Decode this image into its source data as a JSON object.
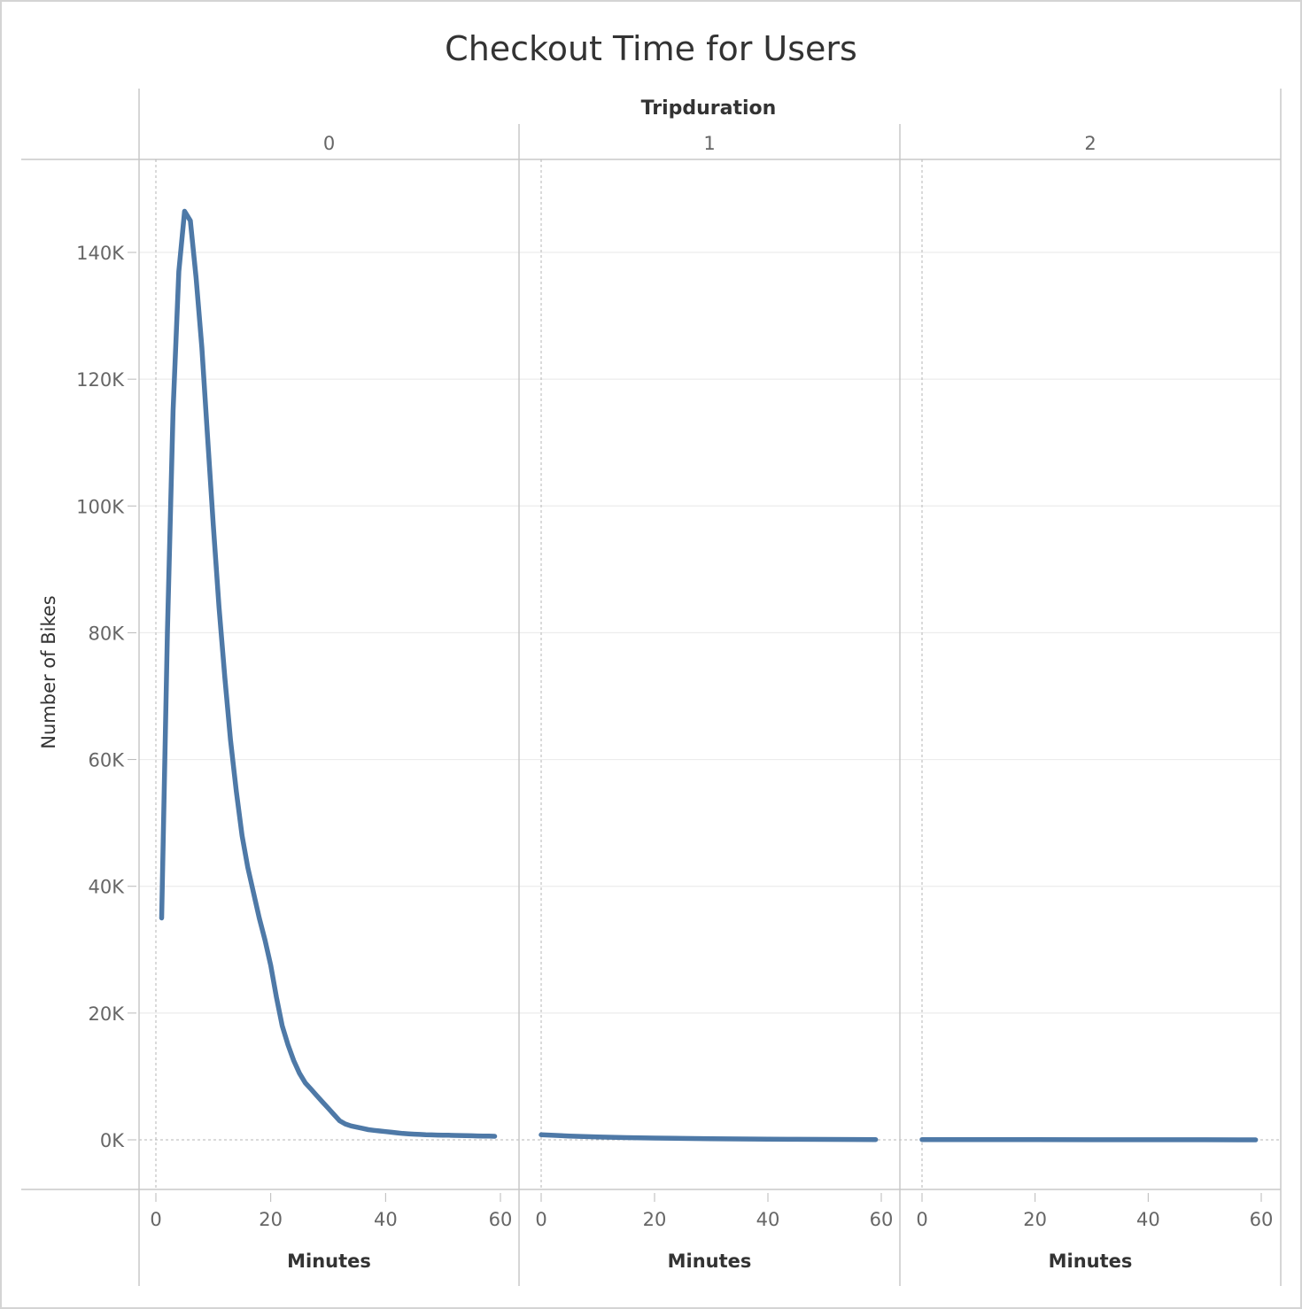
{
  "chart_data": {
    "type": "line",
    "title": "Checkout Time for Users",
    "column_header": "Tripduration",
    "ylabel": "Number of Bikes",
    "xlabel": "Minutes",
    "ylim": [
      0,
      150000
    ],
    "xlim": [
      0,
      60
    ],
    "y_ticks": [
      0,
      20000,
      40000,
      60000,
      80000,
      100000,
      120000,
      140000
    ],
    "y_tick_labels": [
      "0K",
      "20K",
      "40K",
      "60K",
      "80K",
      "100K",
      "120K",
      "140K"
    ],
    "x_ticks": [
      0,
      20,
      40,
      60
    ],
    "x_tick_labels": [
      "0",
      "20",
      "40",
      "60"
    ],
    "grid": true,
    "line_color": "#4e79a7",
    "panels": [
      {
        "label": "0",
        "x": [
          1,
          2,
          3,
          4,
          5,
          6,
          7,
          8,
          9,
          10,
          11,
          12,
          13,
          14,
          15,
          16,
          17,
          18,
          19,
          20,
          21,
          22,
          23,
          24,
          25,
          26,
          27,
          28,
          29,
          30,
          31,
          32,
          33,
          34,
          35,
          36,
          37,
          38,
          39,
          40,
          41,
          42,
          43,
          44,
          45,
          46,
          47,
          48,
          49,
          50,
          51,
          52,
          53,
          54,
          55,
          56,
          57,
          58,
          59
        ],
        "values": [
          35000,
          80000,
          115000,
          137000,
          146500,
          145000,
          136000,
          125000,
          111000,
          97000,
          84000,
          73000,
          63000,
          55000,
          48000,
          43000,
          39000,
          35000,
          31500,
          27500,
          22500,
          18000,
          15000,
          12500,
          10500,
          9000,
          8000,
          7000,
          6000,
          5000,
          4000,
          3000,
          2500,
          2200,
          2000,
          1800,
          1600,
          1500,
          1400,
          1300,
          1200,
          1100,
          1000,
          950,
          900,
          850,
          800,
          780,
          760,
          740,
          720,
          700,
          680,
          660,
          640,
          620,
          600,
          580,
          560
        ]
      },
      {
        "label": "1",
        "x": [
          0,
          5,
          10,
          15,
          20,
          25,
          30,
          35,
          40,
          45,
          50,
          55,
          59
        ],
        "values": [
          800,
          600,
          450,
          350,
          280,
          220,
          180,
          140,
          110,
          90,
          70,
          50,
          40
        ]
      },
      {
        "label": "2",
        "x": [
          0,
          10,
          20,
          30,
          40,
          50,
          59
        ],
        "values": [
          40,
          30,
          25,
          20,
          15,
          10,
          5
        ]
      }
    ]
  }
}
